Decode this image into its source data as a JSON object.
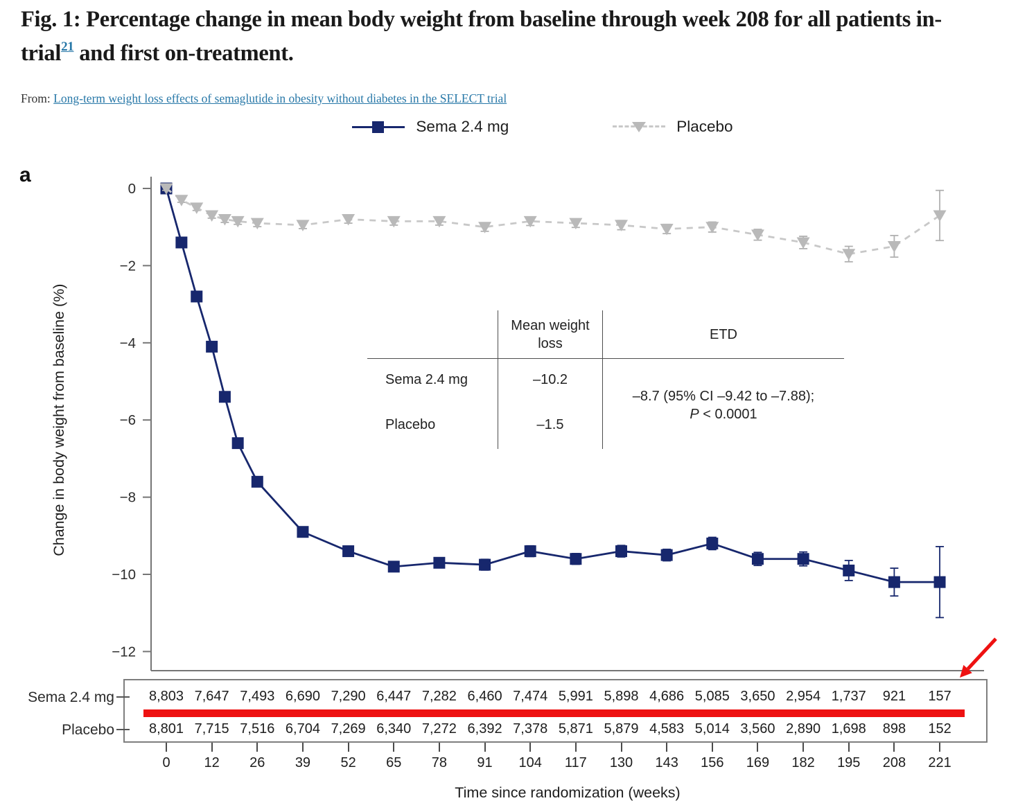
{
  "figure": {
    "panel_label": "a",
    "title_part1": "Fig. 1: Percentage change in mean body weight from baseline through week 208 for all patients in-trial",
    "title_ref": "21",
    "title_part2": " and first on-treatment.",
    "source_prefix": "From:",
    "source_link": "Long-term weight loss effects of semaglutide in obesity without diabetes in the SELECT trial"
  },
  "legend": [
    {
      "label": "Sema 2.4 mg",
      "marker": "navy-square-solid-line",
      "color": "#17276d"
    },
    {
      "label": "Placebo",
      "marker": "gray-triangle-dashed-line",
      "color": "#b9b9b9"
    }
  ],
  "chart_data": {
    "type": "line",
    "xlabel": "Time since randomization (weeks)",
    "ylabel": "Change in body weight from baseline (%)",
    "ylim": [
      -12.6,
      0.4
    ],
    "grid": false,
    "legend_position": "top-center",
    "yticks": [
      0,
      -2,
      -4,
      -6,
      -8,
      -10,
      -12
    ],
    "ytick_labels": [
      "0",
      "−2",
      "−4",
      "−6",
      "−8",
      "−10",
      "−12"
    ],
    "xtick_weeks": [
      0,
      12,
      26,
      39,
      52,
      65,
      78,
      91,
      104,
      117,
      130,
      143,
      156,
      169,
      182,
      195,
      208,
      221
    ],
    "xtick_labels": [
      "0",
      "12",
      "26",
      "39",
      "52",
      "65",
      "78",
      "91",
      "104",
      "117",
      "130",
      "143",
      "156",
      "169",
      "182",
      "195",
      "208",
      "221"
    ],
    "x_weeks": [
      0,
      4,
      8,
      12,
      16,
      20,
      26,
      39,
      52,
      65,
      78,
      91,
      104,
      117,
      130,
      143,
      156,
      169,
      182,
      195,
      208,
      221
    ],
    "series": [
      {
        "name": "Sema 2.4 mg",
        "color": "#17276d",
        "marker": "square",
        "line": "solid",
        "values": [
          0,
          -1.4,
          -2.8,
          -4.1,
          -5.4,
          -6.6,
          -7.6,
          -8.9,
          -9.4,
          -9.8,
          -9.7,
          -9.75,
          -9.4,
          -9.6,
          -9.4,
          -9.5,
          -9.2,
          -9.6,
          -9.6,
          -9.9,
          -10.2,
          -10.2
        ],
        "err": [
          0.08,
          0.09,
          0.1,
          0.1,
          0.11,
          0.11,
          0.12,
          0.12,
          0.13,
          0.13,
          0.13,
          0.14,
          0.14,
          0.14,
          0.15,
          0.15,
          0.16,
          0.17,
          0.18,
          0.26,
          0.36,
          0.92
        ]
      },
      {
        "name": "Placebo",
        "color": "#b9b9b9",
        "marker": "triangle-down",
        "line": "dashed",
        "values": [
          0,
          -0.3,
          -0.5,
          -0.7,
          -0.8,
          -0.85,
          -0.9,
          -0.95,
          -0.8,
          -0.85,
          -0.85,
          -1.0,
          -0.85,
          -0.9,
          -0.95,
          -1.05,
          -1.0,
          -1.2,
          -1.4,
          -1.7,
          -1.5,
          -0.7
        ],
        "err": [
          0.05,
          0.06,
          0.07,
          0.07,
          0.08,
          0.08,
          0.09,
          0.09,
          0.1,
          0.1,
          0.1,
          0.11,
          0.11,
          0.11,
          0.12,
          0.12,
          0.13,
          0.14,
          0.16,
          0.2,
          0.28,
          0.65
        ]
      }
    ],
    "inset_table": {
      "col2_header": "Mean weight loss",
      "col3_header": "ETD",
      "rows": [
        {
          "label": "Sema 2.4 mg",
          "value": "–10.2"
        },
        {
          "label": "Placebo",
          "value": "–1.5"
        }
      ],
      "etd_line1": "–8.7 (95% CI –9.42 to –7.88);",
      "etd_p_symbol": "P",
      "etd_p_rest": " < 0.0001"
    }
  },
  "risk_table": {
    "rows": [
      {
        "label": "Sema 2.4 mg",
        "counts": [
          "8,803",
          "7,647",
          "7,493",
          "6,690",
          "7,290",
          "6,447",
          "7,282",
          "6,460",
          "7,474",
          "5,991",
          "5,898",
          "4,686",
          "5,085",
          "3,650",
          "2,954",
          "1,737",
          "921",
          "157"
        ]
      },
      {
        "label": "Placebo",
        "counts": [
          "8,801",
          "7,715",
          "7,516",
          "6,704",
          "7,269",
          "6,340",
          "7,272",
          "6,392",
          "7,378",
          "5,871",
          "5,879",
          "4,583",
          "5,014",
          "3,560",
          "2,890",
          "1,698",
          "898",
          "152"
        ]
      }
    ]
  },
  "annotations": {
    "red_underline": "thick red bar under Sema 2.4 mg counts row",
    "red_arrow": "red arrow pointing at final Sema count (157)",
    "red_color": "#ee1111"
  },
  "colors": {
    "sema_navy": "#17276d",
    "placebo_gray": "#b9b9b9",
    "placebo_dash": "#c8c8c8",
    "link_blue": "#2878a8",
    "annotation_red": "#ee1111",
    "axis_gray": "#757575",
    "box_border": "#7e7e7e"
  }
}
